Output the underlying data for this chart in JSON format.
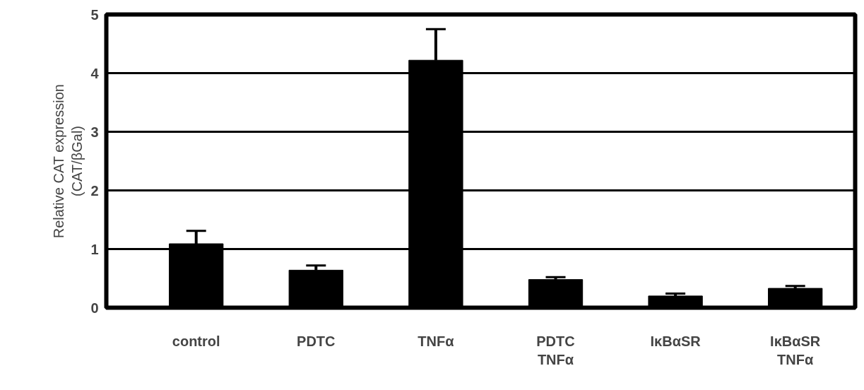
{
  "chart_data": {
    "type": "bar",
    "ylabel": "Relative CAT expression\n(CAT/βGal)",
    "categories": [
      "control",
      "PDTC",
      "TNFα",
      "PDTC\nTNFα",
      "IκBαSR",
      "IκBαSR\nTNFα"
    ],
    "values": [
      1.09,
      0.64,
      4.22,
      0.48,
      0.2,
      0.33
    ],
    "errors": [
      [
        1.09,
        1.31
      ],
      [
        0.64,
        0.72
      ],
      [
        4.22,
        4.75
      ],
      [
        0.48,
        0.52
      ],
      [
        0.2,
        0.24
      ],
      [
        0.33,
        0.37
      ]
    ],
    "color": "#000000",
    "ylim": [
      0,
      5
    ],
    "yticks": [
      0,
      1,
      2,
      3,
      4,
      5
    ],
    "grid": "y"
  }
}
